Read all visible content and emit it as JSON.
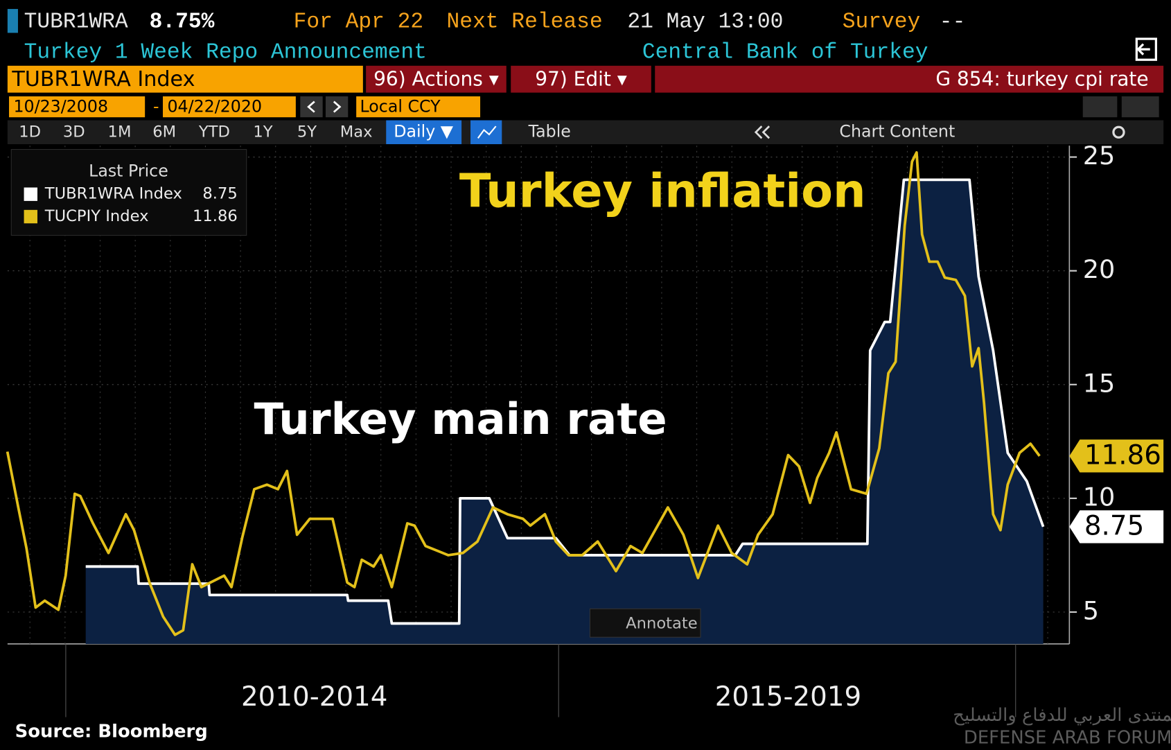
{
  "header": {
    "ticker": "TUBR1WRA",
    "last": "8.75%",
    "for_date": "For Apr 22",
    "next_release_label": "Next Release",
    "next_release": "21 May 13:00",
    "survey_label": "Survey",
    "survey": "--",
    "description": "Turkey 1 Week Repo Announcement",
    "source": "Central Bank of Turkey"
  },
  "command_bar": {
    "security": "TUBR1WRA Index",
    "actions": "96) Actions ▾",
    "edit": "97) Edit ▾",
    "function": "G 854: turkey cpi rate"
  },
  "date_bar": {
    "start": "10/23/2008",
    "separator": "-",
    "end": "04/22/2020",
    "currency": "Local CCY"
  },
  "toolbar": {
    "ranges": [
      "1D",
      "3D",
      "1M",
      "6M",
      "YTD",
      "1Y",
      "5Y",
      "Max"
    ],
    "frequency": "Daily ▼",
    "table": "Table",
    "chart_content": "Chart Content"
  },
  "chart_data": {
    "type": "line",
    "legend_title": "Last Price",
    "annotations": [
      "Turkey inflation",
      "Turkey main rate"
    ],
    "annotate_button": "Annotate",
    "xlim": [
      2008.85,
      2020.3
    ],
    "xticks": [
      {
        "value": 2012.3,
        "label": "2010-2014"
      },
      {
        "value": 2017.5,
        "label": "2015-2019"
      }
    ],
    "ylim": [
      3.6,
      25.5
    ],
    "yticks": [
      5,
      10,
      15,
      20,
      25
    ],
    "grid": true,
    "series": [
      {
        "name": "TUBR1WRA Index",
        "color": "#ffffff",
        "fill": "#0c2142",
        "x": [
          2009.79,
          2010.36,
          2010.37,
          2011.14,
          2011.15,
          2012.66,
          2012.67,
          2013.11,
          2013.15,
          2013.89,
          2013.9,
          2014.22,
          2014.42,
          2014.95,
          2015.1,
          2016.92,
          2017.0,
          2018.37,
          2018.4,
          2018.56,
          2018.62,
          2018.77,
          2019.49,
          2019.59,
          2019.75,
          2019.91,
          2020.12,
          2020.3
        ],
        "values": [
          7.0,
          7.0,
          6.25,
          6.25,
          5.75,
          5.75,
          5.5,
          5.5,
          4.5,
          4.5,
          10.0,
          10.0,
          8.25,
          8.25,
          7.5,
          7.5,
          8.0,
          8.0,
          16.5,
          17.75,
          17.75,
          24.0,
          24.0,
          19.75,
          16.5,
          12.0,
          10.75,
          8.75
        ]
      },
      {
        "name": "TUCPIY Index",
        "color": "#e3c01a",
        "x": [
          2008.93,
          2009.05,
          2009.14,
          2009.24,
          2009.34,
          2009.49,
          2009.57,
          2009.67,
          2009.73,
          2009.87,
          2010.04,
          2010.23,
          2010.32,
          2010.49,
          2010.64,
          2010.77,
          2010.86,
          2010.96,
          2011.06,
          2011.31,
          2011.39,
          2011.51,
          2011.64,
          2011.78,
          2011.9,
          2012.0,
          2012.11,
          2012.25,
          2012.37,
          2012.5,
          2012.66,
          2012.74,
          2012.82,
          2012.95,
          2013.03,
          2013.15,
          2013.32,
          2013.4,
          2013.52,
          2013.77,
          2013.93,
          2014.09,
          2014.26,
          2014.42,
          2014.59,
          2014.67,
          2014.83,
          2014.95,
          2015.09,
          2015.24,
          2015.41,
          2015.61,
          2015.77,
          2015.9,
          2016.18,
          2016.35,
          2016.51,
          2016.73,
          2016.88,
          2017.05,
          2017.17,
          2017.33,
          2017.5,
          2017.62,
          2017.74,
          2017.82,
          2017.95,
          2018.03,
          2018.19,
          2018.36,
          2018.5,
          2018.6,
          2018.68,
          2018.78,
          2018.86,
          2018.91,
          2018.97,
          2019.05,
          2019.14,
          2019.22,
          2019.34,
          2019.44,
          2019.52,
          2019.59,
          2019.65,
          2019.75,
          2019.83,
          2019.91,
          2020.04,
          2020.16,
          2020.26
        ],
        "values": [
          12.05,
          9.6,
          7.8,
          5.2,
          5.5,
          5.1,
          6.6,
          10.2,
          10.1,
          8.9,
          7.6,
          9.3,
          8.6,
          6.3,
          4.8,
          4.0,
          4.2,
          7.1,
          6.1,
          6.6,
          6.1,
          8.3,
          10.4,
          10.6,
          10.4,
          11.2,
          8.4,
          9.1,
          9.1,
          9.1,
          6.3,
          6.1,
          7.3,
          7.0,
          7.5,
          6.1,
          8.9,
          8.8,
          7.9,
          7.5,
          7.6,
          8.1,
          9.6,
          9.3,
          9.1,
          8.8,
          9.3,
          8.1,
          7.5,
          7.5,
          8.1,
          6.8,
          7.9,
          7.6,
          9.6,
          8.4,
          6.5,
          8.8,
          7.6,
          7.1,
          8.4,
          9.3,
          11.9,
          11.4,
          9.8,
          10.9,
          12.0,
          12.9,
          10.4,
          10.2,
          12.2,
          15.5,
          16.0,
          22.0,
          24.8,
          25.2,
          21.6,
          20.4,
          20.4,
          19.7,
          19.6,
          18.9,
          15.8,
          16.6,
          14.2,
          9.3,
          8.6,
          10.6,
          12.0,
          12.4,
          11.86
        ]
      }
    ]
  },
  "footer": {
    "source": "Source:  Bloomberg",
    "watermark_arabic": "المنتدى العربي للدفاع والتسليح",
    "watermark": "DEFENSE ARAB FORUM"
  }
}
